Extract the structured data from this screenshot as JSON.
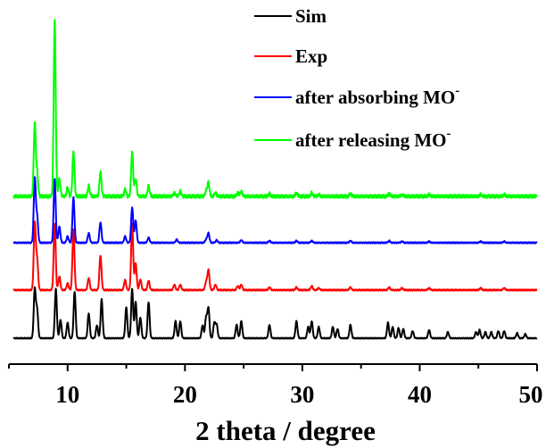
{
  "chart_data": {
    "type": "line",
    "title": "",
    "xlabel": "2 theta / degree",
    "ylabel": "",
    "xlim": [
      5,
      50
    ],
    "x_ticks": [
      10,
      20,
      30,
      40,
      50
    ],
    "x_tick_labels": [
      "10",
      "20",
      "30",
      "40",
      "50"
    ],
    "y_axis_shown": false,
    "grid": false,
    "legend_position": "top-right",
    "stacked_with_offsets": true,
    "series": [
      {
        "key": "sim",
        "name": "Sim",
        "superscript": "",
        "color": "#000000",
        "offset": 0,
        "scale": 0.58,
        "peaks": [
          [
            7.2,
            95
          ],
          [
            7.4,
            55
          ],
          [
            9.0,
            95
          ],
          [
            9.4,
            35
          ],
          [
            10.0,
            30
          ],
          [
            10.6,
            90
          ],
          [
            11.8,
            48
          ],
          [
            12.5,
            25
          ],
          [
            12.9,
            75
          ],
          [
            15.0,
            60
          ],
          [
            15.5,
            95
          ],
          [
            15.8,
            70
          ],
          [
            16.2,
            40
          ],
          [
            16.9,
            70
          ],
          [
            19.2,
            33
          ],
          [
            19.6,
            33
          ],
          [
            21.5,
            25
          ],
          [
            21.8,
            40
          ],
          [
            22.0,
            58
          ],
          [
            22.5,
            30
          ],
          [
            22.7,
            26
          ],
          [
            24.4,
            26
          ],
          [
            24.8,
            33
          ],
          [
            27.2,
            26
          ],
          [
            29.5,
            33
          ],
          [
            30.5,
            22
          ],
          [
            30.8,
            33
          ],
          [
            31.4,
            22
          ],
          [
            32.6,
            22
          ],
          [
            33.0,
            18
          ],
          [
            34.1,
            26
          ],
          [
            37.3,
            30
          ],
          [
            37.7,
            22
          ],
          [
            38.2,
            20
          ],
          [
            38.6,
            18
          ],
          [
            39.4,
            14
          ],
          [
            40.8,
            16
          ],
          [
            42.4,
            12
          ],
          [
            44.8,
            12
          ],
          [
            45.1,
            16
          ],
          [
            45.6,
            12
          ],
          [
            46.1,
            12
          ],
          [
            46.7,
            14
          ],
          [
            47.2,
            14
          ],
          [
            48.3,
            10
          ],
          [
            49.0,
            8
          ]
        ]
      },
      {
        "key": "exp",
        "name": "Exp",
        "superscript": "",
        "color": "#ff0000",
        "offset": 54,
        "scale": 0.75,
        "peaks": [
          [
            7.2,
            100
          ],
          [
            7.4,
            45
          ],
          [
            8.9,
            100
          ],
          [
            9.3,
            20
          ],
          [
            10.0,
            10
          ],
          [
            10.5,
            90
          ],
          [
            11.8,
            18
          ],
          [
            12.8,
            52
          ],
          [
            14.9,
            15
          ],
          [
            15.5,
            100
          ],
          [
            15.8,
            40
          ],
          [
            16.2,
            16
          ],
          [
            16.9,
            14
          ],
          [
            19.1,
            8
          ],
          [
            19.6,
            8
          ],
          [
            21.8,
            12
          ],
          [
            22.0,
            30
          ],
          [
            22.6,
            8
          ],
          [
            24.5,
            6
          ],
          [
            24.8,
            8
          ],
          [
            27.2,
            4
          ],
          [
            29.5,
            4
          ],
          [
            30.8,
            6
          ],
          [
            31.4,
            3
          ],
          [
            34.1,
            4
          ],
          [
            37.4,
            4
          ],
          [
            38.5,
            3
          ],
          [
            40.8,
            3
          ],
          [
            45.2,
            3
          ],
          [
            47.2,
            3
          ]
        ]
      },
      {
        "key": "absorb",
        "name": "after absorbing MO",
        "superscript": "-",
        "color": "#0000ff",
        "offset": 107,
        "scale": 0.72,
        "peaks": [
          [
            7.2,
            100
          ],
          [
            7.4,
            40
          ],
          [
            8.9,
            100
          ],
          [
            9.3,
            25
          ],
          [
            10.0,
            10
          ],
          [
            10.5,
            70
          ],
          [
            11.8,
            15
          ],
          [
            12.8,
            32
          ],
          [
            14.9,
            10
          ],
          [
            15.5,
            55
          ],
          [
            15.8,
            35
          ],
          [
            16.9,
            8
          ],
          [
            19.3,
            5
          ],
          [
            21.8,
            5
          ],
          [
            22.0,
            15
          ],
          [
            22.7,
            4
          ],
          [
            24.8,
            4
          ],
          [
            27.2,
            3
          ],
          [
            29.5,
            3
          ],
          [
            30.8,
            3
          ],
          [
            34.1,
            3
          ],
          [
            37.4,
            3
          ],
          [
            38.5,
            2
          ],
          [
            40.8,
            2
          ],
          [
            45.2,
            2
          ],
          [
            47.2,
            2
          ]
        ]
      },
      {
        "key": "release",
        "name": "after releasing MO",
        "superscript": "-",
        "color": "#00ff00",
        "offset": 159,
        "scale": 1.98,
        "peaks": [
          [
            7.2,
            41
          ],
          [
            7.4,
            13
          ],
          [
            8.9,
            100
          ],
          [
            9.3,
            10
          ],
          [
            10.0,
            5
          ],
          [
            10.5,
            25
          ],
          [
            11.8,
            6
          ],
          [
            12.8,
            14
          ],
          [
            14.9,
            4
          ],
          [
            15.5,
            25
          ],
          [
            15.8,
            10
          ],
          [
            16.9,
            6
          ],
          [
            19.1,
            2
          ],
          [
            19.6,
            3
          ],
          [
            21.8,
            3
          ],
          [
            22.0,
            8
          ],
          [
            22.6,
            2
          ],
          [
            24.5,
            2
          ],
          [
            24.8,
            3
          ],
          [
            27.2,
            1.5
          ],
          [
            29.5,
            2
          ],
          [
            30.8,
            2
          ],
          [
            31.4,
            1
          ],
          [
            34.1,
            1.5
          ],
          [
            37.4,
            1.5
          ],
          [
            38.5,
            1
          ],
          [
            40.8,
            1
          ],
          [
            45.2,
            1
          ],
          [
            47.2,
            1
          ]
        ]
      }
    ]
  }
}
